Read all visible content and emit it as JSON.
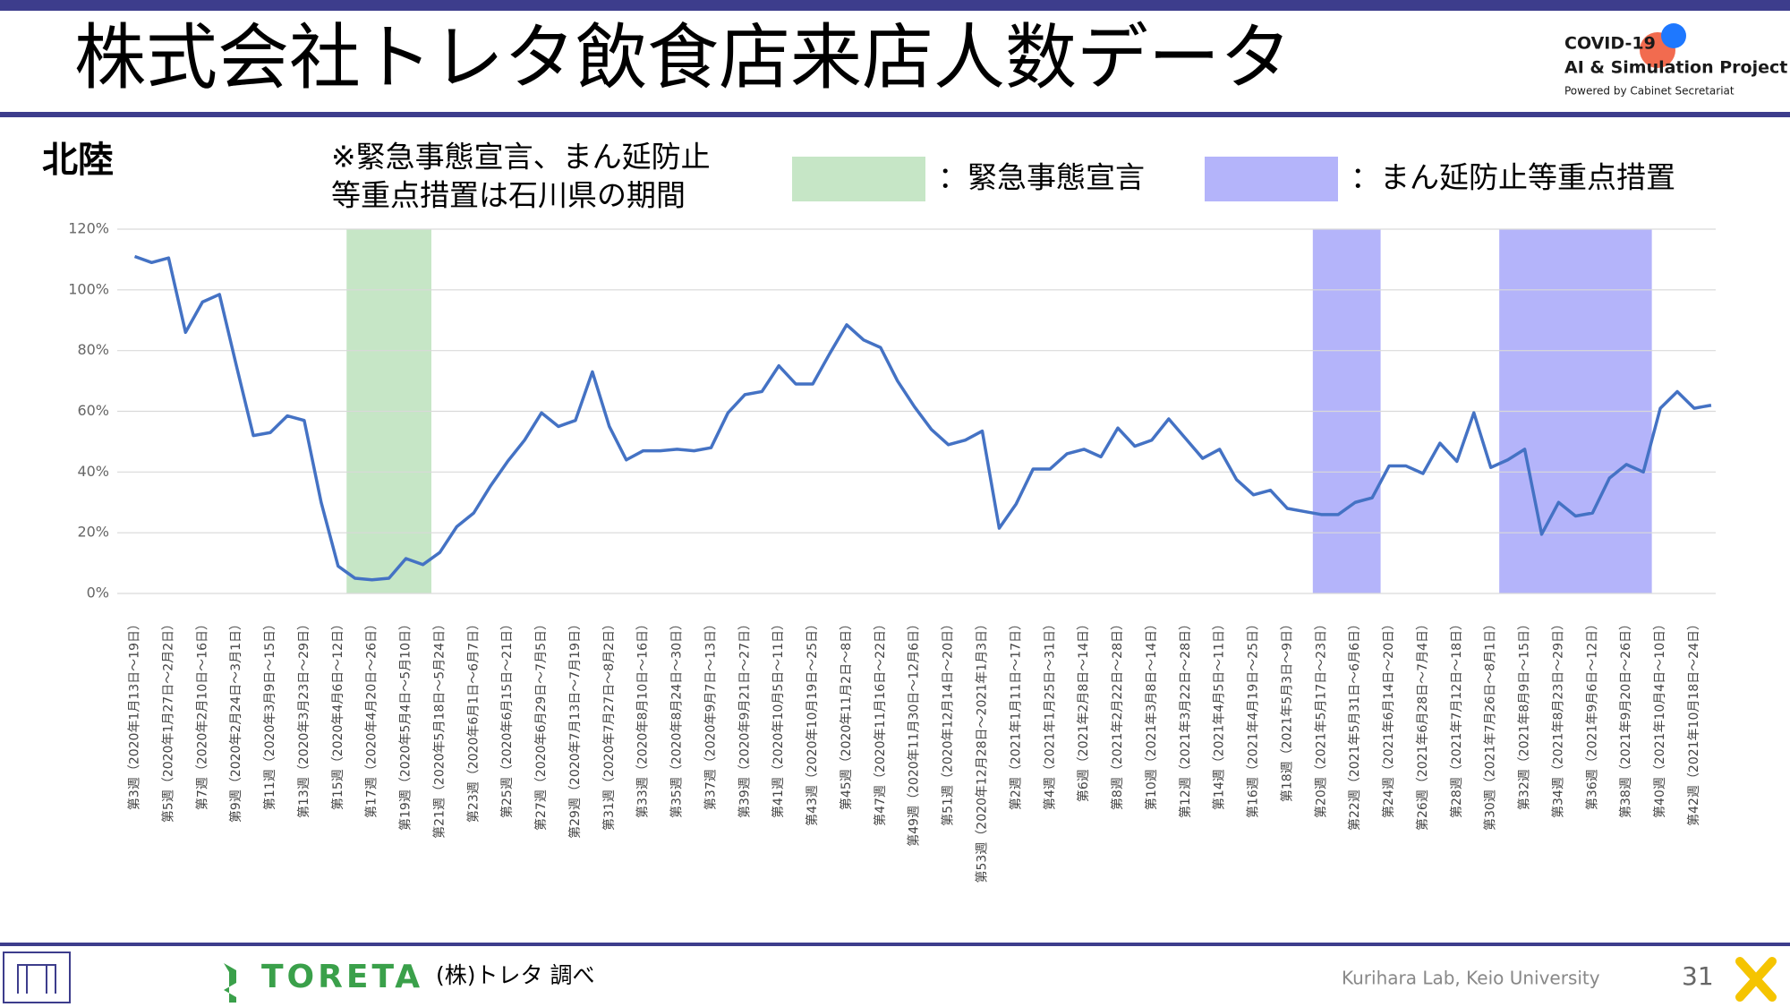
{
  "header": {
    "title": "株式会社トレタ飲食店来店人数データ",
    "logo": {
      "line1": "COVID-19",
      "line2": "AI & Simulation Project",
      "line3": "Powered by Cabinet Secretariat"
    }
  },
  "chart_data": {
    "type": "line",
    "region": "北陸",
    "note": [
      "※緊急事態宣言、まん延防止",
      "等重点措置は石川県の期間"
    ],
    "categories": [
      "第3週（2020年1月13日～19日）",
      null,
      "第5週（2020年1月27日～2月2日）",
      null,
      "第7週（2020年2月10日～16日）",
      null,
      "第9週（2020年2月24日～3月1日）",
      null,
      "第11週（2020年3月9日～15日）",
      null,
      "第13週（2020年3月23日～29日）",
      null,
      "第15週（2020年4月6日～12日）",
      null,
      "第17週（2020年4月20日～26日）",
      null,
      "第19週（2020年5月4日～5月10日）",
      null,
      "第21週（2020年5月18日～5月24日）",
      null,
      "第23週（2020年6月1日～6月7日）",
      null,
      "第25週（2020年6月15日～21日）",
      null,
      "第27週（2020年6月29日～7月5日）",
      null,
      "第29週（2020年7月13日～7月19日）",
      null,
      "第31週（2020年7月27日～8月2日）",
      null,
      "第33週（2020年8月10日～16日）",
      null,
      "第35週（2020年8月24日～30日）",
      null,
      "第37週（2020年9月7日～13日）",
      null,
      "第39週（2020年9月21日～27日）",
      null,
      "第41週（2020年10月5日～11日）",
      null,
      "第43週（2020年10月19日～25日）",
      null,
      "第45週（2020年11月2日～8日）",
      null,
      "第47週（2020年11月16日～22日）",
      null,
      "第49週（2020年11月30日～12月6日）",
      null,
      "第51週（2020年12月14日～20日）",
      null,
      "第53週（2020年12月28日～2021年1月3日）",
      null,
      "第2週（2021年1月11日～17日）",
      null,
      "第4週（2021年1月25日～31日）",
      null,
      "第6週（2021年2月8日～14日）",
      null,
      "第8週（2021年2月22日～28日）",
      null,
      "第10週（2021年3月8日～14日）",
      null,
      "第12週（2021年3月22日～28日）",
      null,
      "第14週（2021年4月5日～11日）",
      null,
      "第16週（2021年4月19日～25日）",
      null,
      "第18週（2021年5月3日～9日）",
      null,
      "第20週（2021年5月17日～23日）",
      null,
      "第22週（2021年5月31日～6月6日）",
      null,
      "第24週（2021年6月14日～20日）",
      null,
      "第26週（2021年6月28日～7月4日）",
      null,
      "第28週（2021年7月12日～18日）",
      null,
      "第30週（2021年7月26日～8月1日）",
      null,
      "第32週（2021年8月9日～15日）",
      null,
      "第34週（2021年8月23日～29日）",
      null,
      "第36週（2021年9月6日～12日）",
      null,
      "第38週（2021年9月20日～26日）",
      null,
      "第40週（2021年10月4日～10日）",
      null,
      "第42週（2021年10月18日～24日）",
      null
    ],
    "values": [
      111,
      109,
      110.5,
      86,
      96,
      98.5,
      75,
      52,
      53,
      58.5,
      57,
      30,
      9,
      5,
      4.5,
      5,
      11.5,
      9.5,
      13.5,
      22,
      26.5,
      35.5,
      43.5,
      50.5,
      59.5,
      55,
      57,
      73,
      55,
      44,
      47,
      47,
      47.5,
      47,
      48,
      59.5,
      65.5,
      66.5,
      75,
      69,
      69,
      79,
      88.5,
      83.5,
      81,
      70,
      61.5,
      54,
      49,
      50.5,
      53.5,
      21.5,
      29.5,
      41,
      41,
      46,
      47.5,
      45,
      54.5,
      48.5,
      50.5,
      57.5,
      51,
      44.5,
      47.5,
      37.5,
      32.5,
      34,
      28,
      27,
      26,
      26,
      30,
      31.5,
      42,
      42,
      39.5,
      49.5,
      43.5,
      59.5,
      41.5,
      44,
      47.5,
      19.5,
      30,
      25.5,
      26.5,
      38,
      42.5,
      40,
      61,
      66.5,
      61,
      62
    ],
    "color": "#4472c4",
    "ylim": [
      0,
      120
    ],
    "yticks": [
      {
        "value": 0,
        "label": "0%"
      },
      {
        "value": 20,
        "label": "20%"
      },
      {
        "value": 40,
        "label": "40%"
      },
      {
        "value": 60,
        "label": "60%"
      },
      {
        "value": 80,
        "label": "80%"
      },
      {
        "value": 100,
        "label": "100%"
      },
      {
        "value": 120,
        "label": "120%"
      }
    ],
    "grid": true,
    "periods": [
      {
        "label": "：緊急事態宣言",
        "color": "#c6e6c6",
        "ranges": [
          [
            13,
            17
          ]
        ]
      },
      {
        "label": "：まん延防止等重点措置",
        "color": "#b4b4fa",
        "ranges": [
          [
            70,
            73
          ],
          [
            81,
            89
          ]
        ]
      }
    ]
  },
  "footer": {
    "brand": "TORETA",
    "source": "(株)トレタ 調べ",
    "credit": "Kurihara Lab, Keio University",
    "page": "31"
  }
}
